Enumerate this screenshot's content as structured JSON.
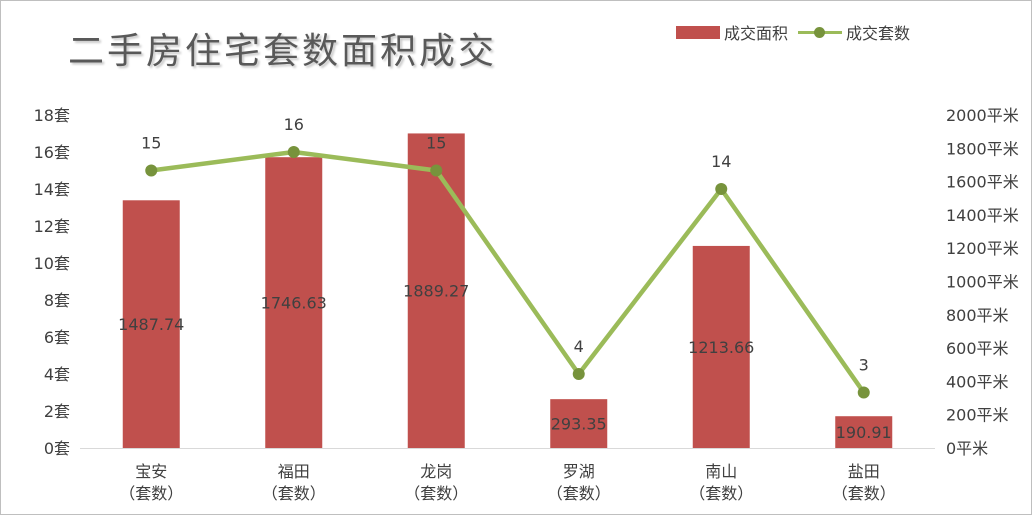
{
  "chart_data": {
    "type": "bar+line",
    "title": "二手房住宅套数面积成交",
    "categories": [
      "宝安\n（套数）",
      "福田\n（套数）",
      "龙岗\n（套数）",
      "罗湖\n（套数）",
      "南山\n（套数）",
      "盐田\n（套数）"
    ],
    "series": [
      {
        "name": "成交面积",
        "type": "bar",
        "axis": "right",
        "color": "#c0504d",
        "values": [
          1487.74,
          1746.63,
          1889.27,
          293.35,
          1213.66,
          190.91
        ],
        "labels": [
          "1487.74",
          "1746.63",
          "1889.27",
          "293.35",
          "1213.66",
          "190.91"
        ]
      },
      {
        "name": "成交套数",
        "type": "line",
        "axis": "left",
        "color": "#9bbb59",
        "marker_color": "#77933c",
        "values": [
          15,
          16,
          15,
          4,
          14,
          3
        ],
        "labels": [
          "15",
          "16",
          "15",
          "4",
          "14",
          "3"
        ]
      }
    ],
    "left_axis": {
      "min": 0,
      "max": 18,
      "ticks": [
        "0套",
        "2套",
        "4套",
        "6套",
        "8套",
        "10套",
        "12套",
        "14套",
        "16套",
        "18套"
      ]
    },
    "right_axis": {
      "min": 0,
      "max": 2000,
      "ticks": [
        "0平米",
        "200平米",
        "400平米",
        "600平米",
        "800平米",
        "1000平米",
        "1200平米",
        "1400平米",
        "1600平米",
        "1800平米",
        "2000平米"
      ]
    },
    "grid": false,
    "legend": "top-right"
  }
}
